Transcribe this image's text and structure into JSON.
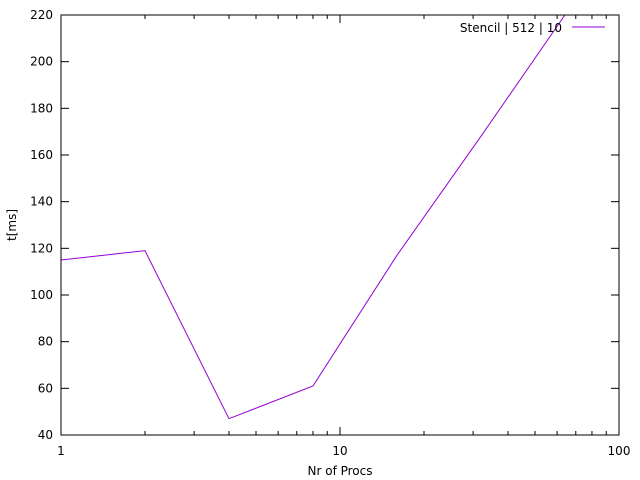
{
  "chart_data": {
    "type": "line",
    "xlabel": "Nr of Procs",
    "ylabel": "t[ms]",
    "xscale": "log",
    "xlim": [
      1,
      100
    ],
    "ylim": [
      40,
      220
    ],
    "x_ticks": [
      1,
      10,
      100
    ],
    "x_tick_labels": [
      "1",
      "10",
      "100"
    ],
    "y_ticks": [
      40,
      60,
      80,
      100,
      120,
      140,
      160,
      180,
      200,
      220
    ],
    "y_tick_labels": [
      "40",
      "60",
      "80",
      "100",
      "120",
      "140",
      "160",
      "180",
      "200",
      "220"
    ],
    "grid": false,
    "legend_position": "top-right",
    "series": [
      {
        "name": "Stencil | 512 | 10",
        "color": "#9400d3",
        "x": [
          1,
          2,
          4,
          8,
          16,
          32,
          64
        ],
        "y": [
          115,
          119,
          47,
          61,
          117,
          168,
          220
        ]
      }
    ]
  }
}
